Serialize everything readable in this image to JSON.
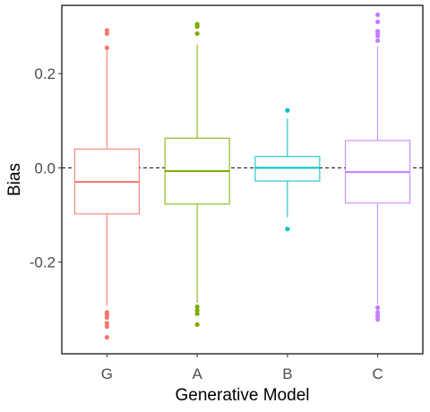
{
  "chart_data": {
    "type": "box",
    "xlabel": "Generative Model",
    "ylabel": "Bias",
    "ylim": [
      -0.395,
      0.345
    ],
    "yticks": [
      -0.2,
      0.0,
      0.2
    ],
    "ytick_labels": [
      "-0.2",
      "0.0",
      "0.2"
    ],
    "reference_line": {
      "y": 0.0,
      "style": "dashed"
    },
    "grid": false,
    "legend": "none",
    "categories": [
      "G",
      "A",
      "B",
      "C"
    ],
    "boxes": [
      {
        "category": "G",
        "color": "#F8766D",
        "q1": -0.098,
        "median": -0.03,
        "q3": 0.04,
        "whisker_low": -0.293,
        "whisker_high": 0.25,
        "outliers": [
          0.255,
          0.285,
          0.292,
          -0.307,
          -0.312,
          -0.318,
          -0.33,
          -0.337,
          -0.36
        ]
      },
      {
        "category": "A",
        "color": "#7CAE00",
        "q1": -0.077,
        "median": -0.007,
        "q3": 0.063,
        "whisker_low": -0.287,
        "whisker_high": 0.262,
        "outliers": [
          0.285,
          0.3,
          0.305,
          -0.295,
          -0.303,
          -0.31,
          -0.333
        ]
      },
      {
        "category": "B",
        "color": "#00BFC4",
        "q1": -0.028,
        "median": 0.0,
        "q3": 0.024,
        "whisker_low": -0.105,
        "whisker_high": 0.105,
        "outliers": [
          0.122,
          -0.13
        ]
      },
      {
        "category": "C",
        "color": "#C77CFF",
        "q1": -0.075,
        "median": -0.009,
        "q3": 0.058,
        "whisker_low": -0.29,
        "whisker_high": 0.258,
        "outliers": [
          0.27,
          0.28,
          0.285,
          0.29,
          0.31,
          0.325,
          -0.297,
          -0.307,
          -0.315,
          -0.322
        ]
      }
    ]
  }
}
